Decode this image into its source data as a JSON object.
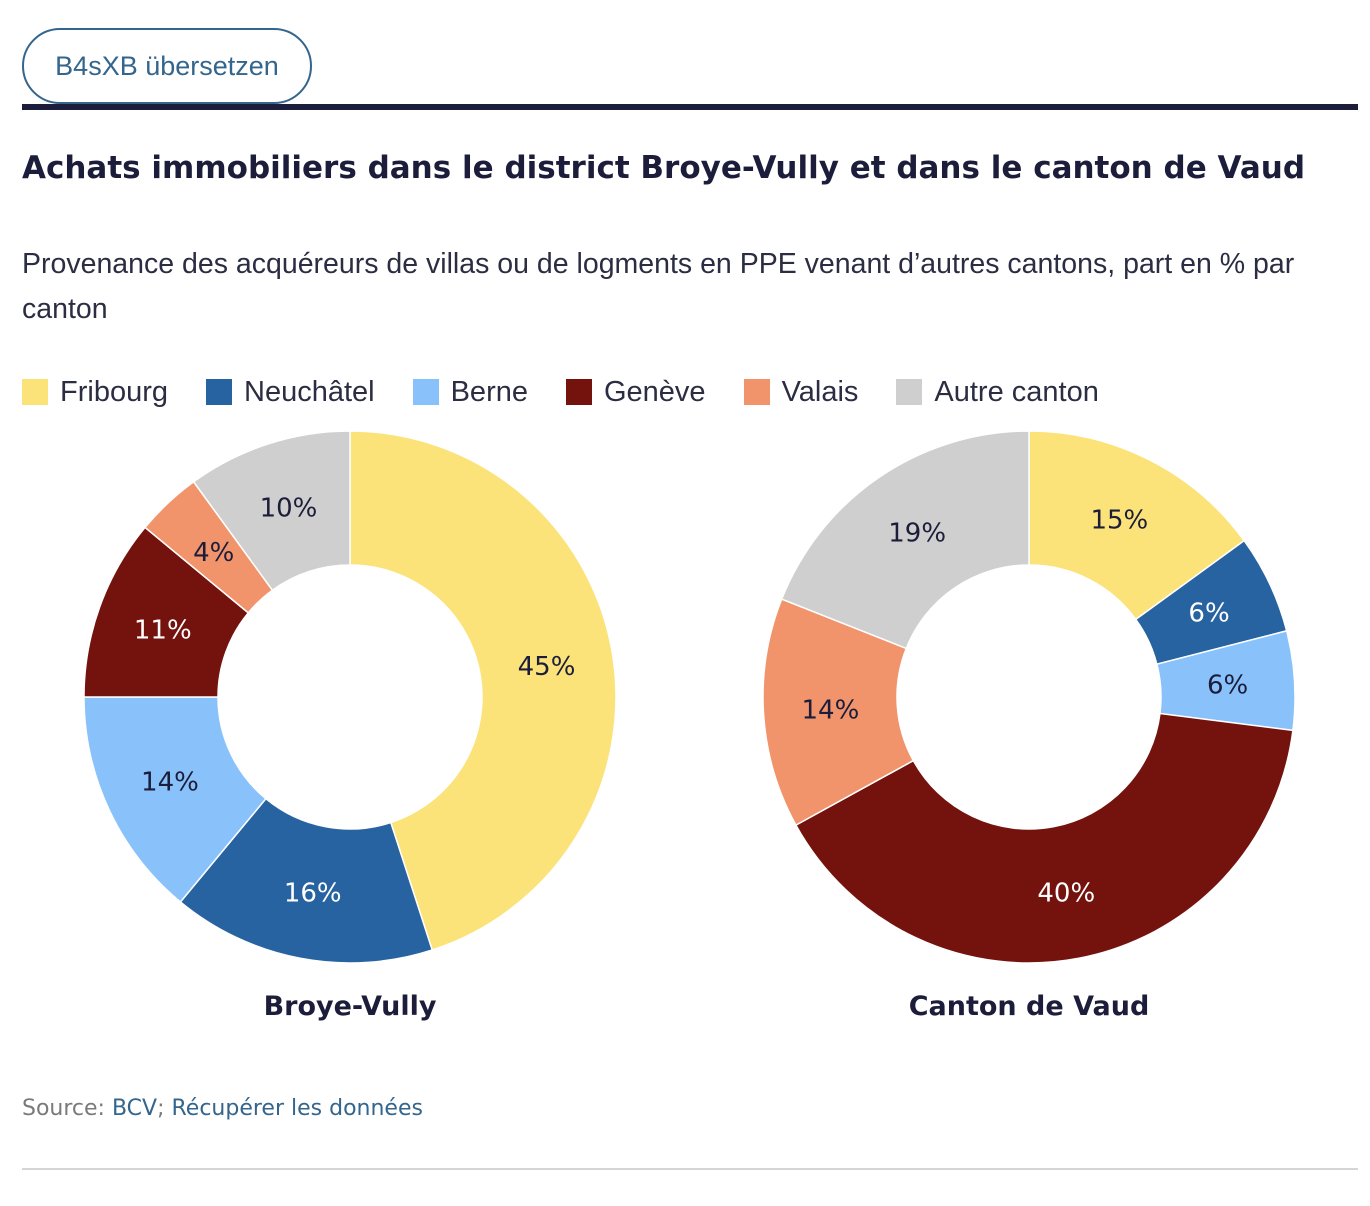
{
  "translate_button": {
    "label": "B4sXB übersetzen"
  },
  "title": "Achats immobiliers dans le district Broye-Vully et dans le canton de Vaud",
  "subtitle": "Provenance des acquéreurs de villas ou de logments en PPE venant d’autres cantons, part en % par canton",
  "legend": [
    {
      "label": "Fribourg",
      "color": "#fbe37a"
    },
    {
      "label": "Neuchâtel",
      "color": "#2763a0"
    },
    {
      "label": "Berne",
      "color": "#89c1fa"
    },
    {
      "label": "Genève",
      "color": "#74120d"
    },
    {
      "label": "Valais",
      "color": "#f1946b"
    },
    {
      "label": "Autre canton",
      "color": "#cfcfcf"
    }
  ],
  "chart_data": [
    {
      "type": "pie",
      "title": "Broye-Vully",
      "categories": [
        "Fribourg",
        "Neuchâtel",
        "Berne",
        "Genève",
        "Valais",
        "Autre canton"
      ],
      "values": [
        45,
        16,
        14,
        11,
        4,
        10
      ],
      "labels": [
        "45%",
        "16%",
        "14%",
        "11%",
        "4%",
        "10%"
      ],
      "label_colors": [
        "#1b1d3a",
        "#ffffff",
        "#1b1d3a",
        "#ffffff",
        "#1b1d3a",
        "#1b1d3a"
      ]
    },
    {
      "type": "pie",
      "title": "Canton de Vaud",
      "categories": [
        "Fribourg",
        "Neuchâtel",
        "Berne",
        "Genève",
        "Valais",
        "Autre canton"
      ],
      "values": [
        15,
        6,
        6,
        40,
        14,
        19
      ],
      "labels": [
        "15%",
        "6%",
        "6%",
        "40%",
        "14%",
        "19%"
      ],
      "label_colors": [
        "#1b1d3a",
        "#ffffff",
        "#1b1d3a",
        "#ffffff",
        "#1b1d3a",
        "#1b1d3a"
      ]
    }
  ],
  "source": {
    "prefix": "Source: ",
    "link": "BCV",
    "separator": "; ",
    "download": "Récupérer les données"
  }
}
